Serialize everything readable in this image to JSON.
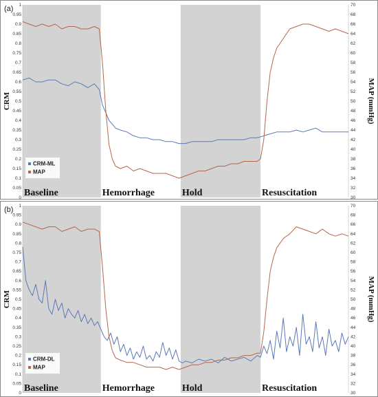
{
  "chart_data": [
    {
      "type": "line",
      "panel_label": "(a)",
      "ylabel_left": "CRM",
      "ylabel_right": "MAP (mmHg)",
      "y_left_ticks": [
        "0",
        "0.05",
        "0.1",
        "0.15",
        "0.2",
        "0.25",
        "0.3",
        "0.35",
        "0.4",
        "0.45",
        "0.5",
        "0.55",
        "0.6",
        "0.65",
        "0.7",
        "0.75",
        "0.8",
        "0.85",
        "0.9",
        "0.95",
        "1"
      ],
      "y_right_ticks": [
        "30",
        "32",
        "34",
        "36",
        "38",
        "40",
        "42",
        "44",
        "46",
        "48",
        "50",
        "52",
        "54",
        "56",
        "58",
        "60",
        "62",
        "64",
        "66",
        "68",
        "70"
      ],
      "ylim_left": [
        0,
        1
      ],
      "ylim_right": [
        30,
        70
      ],
      "xlim": [
        0,
        100
      ],
      "phases": [
        {
          "label": "Baseline",
          "start": 0,
          "end": 24,
          "shaded": true
        },
        {
          "label": "Hemorrhage",
          "start": 24,
          "end": 48.5,
          "shaded": false
        },
        {
          "label": "Hold",
          "start": 48.5,
          "end": 73,
          "shaded": true
        },
        {
          "label": "Resuscitation",
          "start": 73,
          "end": 100,
          "shaded": false
        }
      ],
      "legend": {
        "position": "bottom-left"
      },
      "series": [
        {
          "name": "CRM-ML",
          "axis": "left",
          "color": "#5a78b8",
          "x": [
            0,
            2,
            4,
            6,
            8,
            10,
            12,
            14,
            16,
            18,
            20,
            22,
            23.5,
            24.5,
            25.5,
            26.5,
            27.5,
            28.5,
            30,
            32,
            34,
            36,
            38,
            40,
            42,
            44,
            46,
            48,
            50,
            52,
            54,
            56,
            58,
            60,
            62,
            64,
            66,
            68,
            70,
            72,
            74,
            76,
            78,
            80,
            82,
            84,
            86,
            88,
            90,
            92,
            94,
            96,
            98,
            100
          ],
          "y": [
            0.61,
            0.62,
            0.6,
            0.6,
            0.61,
            0.61,
            0.59,
            0.58,
            0.6,
            0.59,
            0.57,
            0.59,
            0.56,
            0.48,
            0.44,
            0.4,
            0.38,
            0.36,
            0.35,
            0.34,
            0.32,
            0.31,
            0.31,
            0.3,
            0.3,
            0.29,
            0.29,
            0.28,
            0.28,
            0.29,
            0.29,
            0.29,
            0.29,
            0.3,
            0.3,
            0.3,
            0.3,
            0.3,
            0.31,
            0.31,
            0.32,
            0.33,
            0.34,
            0.34,
            0.34,
            0.35,
            0.34,
            0.35,
            0.36,
            0.34,
            0.34,
            0.34,
            0.34,
            0.34
          ]
        },
        {
          "name": "MAP",
          "axis": "right",
          "color": "#b5654a",
          "x": [
            0,
            2,
            4,
            6,
            8,
            10,
            12,
            14,
            16,
            18,
            20,
            22,
            23.5,
            24.5,
            25.5,
            26.5,
            27.5,
            28.5,
            30,
            32,
            34,
            36,
            38,
            40,
            42,
            44,
            46,
            48,
            50,
            52,
            54,
            56,
            58,
            60,
            62,
            64,
            66,
            68,
            70,
            72,
            73,
            74,
            75,
            76,
            77,
            78,
            80,
            82,
            84,
            86,
            88,
            90,
            92,
            94,
            96,
            98,
            100
          ],
          "y": [
            66.5,
            66,
            65.5,
            66,
            65.5,
            66,
            65,
            65.5,
            65.5,
            65,
            65,
            65.5,
            65,
            58,
            48,
            41,
            38,
            36.5,
            36,
            36.5,
            35.5,
            36,
            35.5,
            35,
            35,
            35,
            34.5,
            34,
            34.5,
            35,
            35.5,
            35.5,
            36,
            36.5,
            36.5,
            37,
            37,
            37.5,
            37.5,
            37.5,
            38,
            42,
            50,
            56,
            59,
            61,
            63,
            65,
            65.5,
            66,
            66,
            65.5,
            65,
            64.5,
            65,
            64.5,
            64
          ]
        }
      ]
    },
    {
      "type": "line",
      "panel_label": "(b)",
      "ylabel_left": "CRM",
      "ylabel_right": "MAP (mmHg)",
      "y_left_ticks": [
        "0",
        "0.05",
        "0.1",
        "0.15",
        "0.2",
        "0.25",
        "0.3",
        "0.35",
        "0.4",
        "0.45",
        "0.5",
        "0.55",
        "0.6",
        "0.65",
        "0.7",
        "0.75",
        "0.8",
        "0.85",
        "0.9",
        "0.95",
        "1"
      ],
      "y_right_ticks": [
        "30",
        "32",
        "34",
        "36",
        "38",
        "40",
        "42",
        "44",
        "46",
        "48",
        "50",
        "52",
        "54",
        "56",
        "58",
        "60",
        "62",
        "64",
        "66",
        "68",
        "70"
      ],
      "ylim_left": [
        0,
        1
      ],
      "ylim_right": [
        30,
        70
      ],
      "xlim": [
        0,
        100
      ],
      "phases": [
        {
          "label": "Baseline",
          "start": 0,
          "end": 24,
          "shaded": true
        },
        {
          "label": "Hemorrhage",
          "start": 24,
          "end": 48.5,
          "shaded": false
        },
        {
          "label": "Hold",
          "start": 48.5,
          "end": 73,
          "shaded": true
        },
        {
          "label": "Resuscitation",
          "start": 73,
          "end": 100,
          "shaded": false
        }
      ],
      "legend": {
        "position": "bottom-left"
      },
      "series": [
        {
          "name": "CRM-DL",
          "axis": "left",
          "color": "#5a78b8",
          "x": [
            0,
            1,
            2,
            3,
            4,
            5,
            6,
            7,
            8,
            9,
            10,
            11,
            12,
            13,
            14,
            15,
            16,
            17,
            18,
            19,
            20,
            21,
            22,
            23,
            24,
            25,
            26,
            27,
            28,
            29,
            30,
            31,
            32,
            33,
            34,
            35,
            36,
            37,
            38,
            39,
            40,
            41,
            42,
            43,
            44,
            45,
            46,
            47,
            48,
            49,
            50,
            52,
            54,
            56,
            58,
            60,
            62,
            64,
            66,
            68,
            70,
            72,
            73,
            74,
            75,
            76,
            77,
            78,
            79,
            80,
            81,
            82,
            83,
            84,
            85,
            86,
            87,
            88,
            89,
            90,
            91,
            92,
            93,
            94,
            95,
            96,
            97,
            98,
            99,
            100
          ],
          "y": [
            0.78,
            0.6,
            0.55,
            0.52,
            0.58,
            0.5,
            0.48,
            0.6,
            0.45,
            0.42,
            0.5,
            0.44,
            0.48,
            0.4,
            0.45,
            0.42,
            0.4,
            0.44,
            0.38,
            0.42,
            0.37,
            0.4,
            0.36,
            0.38,
            0.34,
            0.3,
            0.28,
            0.32,
            0.26,
            0.3,
            0.22,
            0.26,
            0.2,
            0.24,
            0.18,
            0.22,
            0.19,
            0.25,
            0.18,
            0.2,
            0.17,
            0.22,
            0.19,
            0.27,
            0.2,
            0.24,
            0.18,
            0.23,
            0.17,
            0.16,
            0.17,
            0.16,
            0.18,
            0.17,
            0.18,
            0.16,
            0.19,
            0.17,
            0.18,
            0.19,
            0.17,
            0.2,
            0.19,
            0.25,
            0.21,
            0.28,
            0.18,
            0.33,
            0.24,
            0.4,
            0.22,
            0.3,
            0.25,
            0.35,
            0.2,
            0.42,
            0.26,
            0.3,
            0.22,
            0.38,
            0.24,
            0.3,
            0.2,
            0.34,
            0.25,
            0.28,
            0.22,
            0.32,
            0.26,
            0.3
          ]
        },
        {
          "name": "MAP",
          "axis": "right",
          "color": "#b5654a",
          "x": [
            0,
            2,
            4,
            6,
            8,
            10,
            12,
            14,
            16,
            18,
            20,
            22,
            23.5,
            24.5,
            25.5,
            26.5,
            27.5,
            28.5,
            30,
            32,
            34,
            36,
            38,
            40,
            42,
            44,
            46,
            48,
            50,
            52,
            54,
            56,
            58,
            60,
            62,
            64,
            66,
            68,
            70,
            72,
            73,
            74,
            75,
            76,
            77,
            78,
            80,
            82,
            84,
            86,
            88,
            90,
            92,
            94,
            96,
            98,
            100
          ],
          "y": [
            66.5,
            66,
            65.5,
            65,
            65.5,
            65.5,
            64.5,
            65,
            65.5,
            64.5,
            65,
            65,
            64.5,
            57,
            48,
            42,
            39,
            37.5,
            37,
            36.5,
            36.5,
            36,
            35.5,
            35.5,
            35.5,
            35,
            35.5,
            35,
            35.5,
            36,
            36,
            36.5,
            36.5,
            37,
            37,
            37.5,
            37.5,
            38,
            38,
            38.5,
            38.5,
            43,
            50,
            56,
            59,
            61,
            63,
            64,
            65.5,
            65,
            64.5,
            64,
            65,
            64,
            63.5,
            64,
            63.5
          ]
        }
      ]
    }
  ]
}
